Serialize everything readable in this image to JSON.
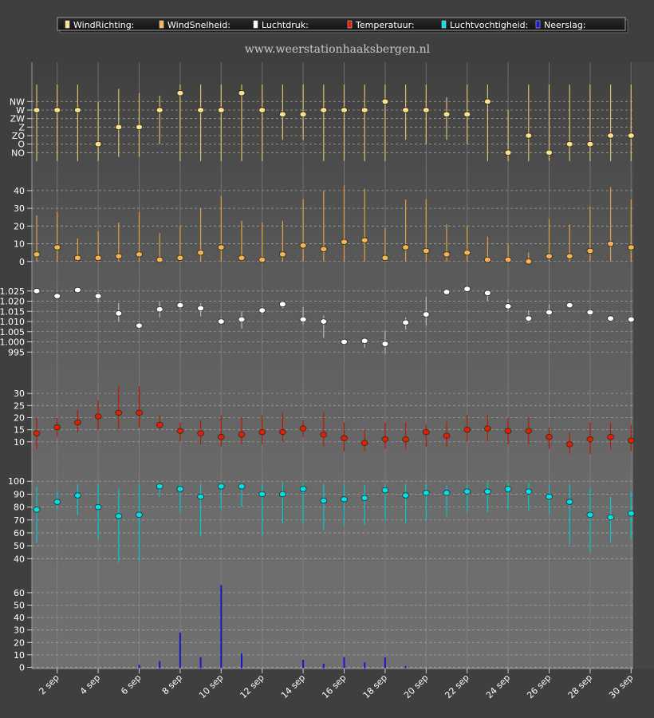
{
  "legend": {
    "items": [
      {
        "key": "winddir",
        "label": "WindRichting:",
        "color": "#ffe08a"
      },
      {
        "key": "windspeed",
        "label": "WindSnelheid:",
        "color": "#f5b450"
      },
      {
        "key": "pressure",
        "label": "Luchtdruk:",
        "color": "#ffffff"
      },
      {
        "key": "temp",
        "label": "Temperatuur:",
        "color": "#e02000"
      },
      {
        "key": "humidity",
        "label": "Luchtvochtigheid:",
        "color": "#00e0e8"
      },
      {
        "key": "rain",
        "label": "Neerslag:",
        "color": "#1818c8"
      }
    ]
  },
  "watermark": "www.weerstationhaaksbergen.nl",
  "chart_data": {
    "type": "line",
    "days": [
      1,
      2,
      3,
      4,
      5,
      6,
      7,
      8,
      9,
      10,
      11,
      12,
      13,
      14,
      15,
      16,
      17,
      18,
      19,
      20,
      21,
      22,
      23,
      24,
      25,
      26,
      27,
      28,
      29,
      30
    ],
    "x_tick_labels": [
      "2 sep",
      "4 sep",
      "6 sep",
      "8 sep",
      "10 sep",
      "12 sep",
      "14 sep",
      "16 sep",
      "18 sep",
      "20 sep",
      "22 sep",
      "24 sep",
      "26 sep",
      "28 sep",
      "30 sep"
    ],
    "panels": [
      {
        "key": "winddir",
        "type": "range",
        "series_name": "WindRichting",
        "color": "#ffe08a",
        "line_color": "#d8c070",
        "categories": [
          "NO",
          "O",
          "ZO",
          "Z",
          "ZW",
          "W",
          "NW"
        ],
        "ylim": [
          -1,
          8
        ],
        "values": [
          5,
          5,
          5,
          1,
          3,
          3,
          5,
          7,
          5,
          5,
          7,
          5,
          4.5,
          4.5,
          5,
          5,
          5,
          6,
          5,
          5,
          4.5,
          4.5,
          6,
          0,
          2,
          0,
          1,
          1,
          2,
          2
        ],
        "low": [
          -1,
          -1,
          -1,
          -1,
          -0.5,
          -0.5,
          1,
          -1,
          -1,
          -1,
          -1,
          -1,
          1.5,
          1.5,
          -1,
          -1,
          -1,
          -1,
          1.5,
          1,
          1.5,
          1,
          -1,
          -1,
          -1,
          -1,
          -1,
          -1,
          -1,
          -1
        ],
        "high": [
          8,
          8,
          8,
          6,
          7.5,
          7,
          6.7,
          8,
          8,
          8,
          8,
          8,
          8,
          8,
          8,
          8,
          8,
          8,
          8,
          8,
          6.5,
          8,
          8,
          5,
          8,
          8,
          8,
          8,
          8,
          8
        ]
      },
      {
        "key": "windspeed",
        "type": "range",
        "series_name": "WindSnelheid",
        "color": "#f5b450",
        "line_color": "#e0a040",
        "ticks": [
          0,
          10,
          20,
          30,
          40
        ],
        "ylim": [
          -1,
          44
        ],
        "values": [
          4,
          8,
          2,
          2,
          3,
          4,
          1,
          2,
          5,
          8,
          2,
          1,
          4,
          9,
          7,
          11,
          12,
          2,
          8,
          6,
          4,
          5,
          1,
          1,
          0,
          3,
          3,
          6,
          10,
          8
        ],
        "low": [
          0,
          0,
          0,
          0,
          0,
          0,
          0,
          0,
          0,
          0,
          0,
          0,
          0,
          0,
          0,
          0,
          0,
          0,
          0,
          0,
          0,
          0,
          0,
          0,
          0,
          0,
          0,
          0,
          0,
          0
        ],
        "high": [
          26,
          28,
          13,
          17,
          22,
          28,
          16,
          20,
          30,
          37,
          23,
          22,
          23,
          35,
          40,
          43,
          41,
          19,
          35,
          35,
          21,
          20,
          14,
          10,
          5,
          24,
          21,
          31,
          42,
          35
        ]
      },
      {
        "key": "pressure",
        "type": "range",
        "series_name": "Luchtdruk",
        "color": "#ffffff",
        "line_color": "#b8b8b8",
        "ticks": [
          995,
          1000,
          1005,
          1010,
          1015,
          1020,
          1025
        ],
        "tick_labels": [
          "995",
          "1.000",
          "1.005",
          "1.010",
          "1.015",
          "1.020",
          "1.025"
        ],
        "ylim": [
          990,
          1030
        ],
        "values": [
          1025,
          1022.5,
          1025.5,
          1022.5,
          1014,
          1008,
          1016,
          1018,
          1016.5,
          1010,
          1011,
          1015.5,
          1018.5,
          1011,
          1010,
          1000,
          1000.5,
          999,
          1009.5,
          1013.5,
          1024.5,
          1026,
          1024,
          1017.5,
          1011.5,
          1014.5,
          1018,
          1014.5,
          1011.5,
          1011
        ],
        "low": [
          1024.5,
          1021,
          1025,
          1019.5,
          1010,
          1006,
          1012,
          1016,
          1012.5,
          1009,
          1006.5,
          1013.5,
          1016.5,
          1008.5,
          1002,
          1000,
          997,
          994,
          1006,
          1008,
          1023,
          1025.5,
          1020,
          1015,
          1009.5,
          1012.5,
          1017,
          1013,
          1010.5,
          1010
        ],
        "high": [
          1026,
          1023.5,
          1026.5,
          1024.5,
          1019,
          1010,
          1020,
          1020,
          1019,
          1012,
          1015,
          1017.5,
          1020,
          1017,
          1013,
          1001,
          1001.5,
          1005.5,
          1012,
          1022,
          1026,
          1027,
          1025.5,
          1021,
          1015.5,
          1018.5,
          1019.5,
          1016,
          1012.5,
          1012.5
        ]
      },
      {
        "key": "temp",
        "type": "range",
        "series_name": "Temperatuur",
        "color": "#e02000",
        "line_color": "#c01800",
        "ticks": [
          10,
          15,
          20,
          25,
          30
        ],
        "ylim": [
          3,
          35
        ],
        "values": [
          13.5,
          16,
          18,
          20.5,
          22,
          22,
          17,
          14.5,
          13.5,
          12,
          13,
          14,
          14,
          15.5,
          13,
          11.5,
          9.5,
          11,
          11,
          14,
          12.5,
          15,
          15.5,
          14.5,
          14.5,
          12,
          9,
          11,
          12,
          10.5
        ],
        "low": [
          7,
          12,
          14,
          15,
          15,
          16,
          15,
          10,
          9,
          8,
          9,
          9,
          10,
          12,
          8,
          6,
          6,
          7,
          7,
          8,
          8,
          10,
          10,
          9,
          9,
          7,
          5,
          5,
          7,
          6
        ],
        "high": [
          20,
          20,
          23,
          27,
          33,
          33,
          21,
          18,
          19,
          21,
          20,
          21,
          22,
          19,
          22,
          18,
          15,
          18,
          18,
          17,
          18,
          21,
          21,
          20,
          20,
          16,
          14,
          18,
          18,
          17
        ]
      },
      {
        "key": "humidity",
        "type": "range",
        "series_name": "Luchtvochtigheid",
        "color": "#00e0e8",
        "line_color": "#00c8d0",
        "ticks": [
          40,
          50,
          60,
          70,
          80,
          90,
          100
        ],
        "ylim": [
          34,
          102
        ],
        "values": [
          78,
          84,
          89,
          80,
          73,
          74,
          96,
          94,
          88,
          96,
          96,
          90,
          90,
          94,
          85,
          86,
          87,
          93,
          89,
          91,
          91,
          92,
          92,
          94,
          92,
          88,
          84,
          74,
          72,
          75
        ],
        "low": [
          52,
          78,
          74,
          55,
          37,
          38,
          88,
          76,
          57,
          78,
          80,
          58,
          67,
          67,
          62,
          66,
          66,
          69,
          67,
          70,
          72,
          76,
          76,
          78,
          77,
          74,
          51,
          45,
          53,
          55
        ],
        "high": [
          96,
          92,
          98,
          98,
          94,
          98,
          98,
          98,
          98,
          99,
          99,
          98,
          99,
          99,
          98,
          98,
          97,
          98,
          98,
          98,
          97,
          98,
          99,
          99,
          99,
          98,
          98,
          95,
          88,
          92
        ]
      },
      {
        "key": "rain",
        "type": "bar",
        "series_name": "Neerslag",
        "color": "#1818c8",
        "ticks": [
          0,
          10,
          20,
          30,
          40,
          50,
          60
        ],
        "ylim": [
          -1,
          67
        ],
        "values": [
          0,
          0,
          0,
          0,
          0,
          2,
          5,
          28,
          8,
          66,
          11,
          0,
          0,
          6,
          3,
          8,
          4,
          8,
          1,
          0,
          0,
          0,
          0,
          0,
          0,
          0,
          0,
          0,
          0,
          0
        ]
      }
    ]
  }
}
